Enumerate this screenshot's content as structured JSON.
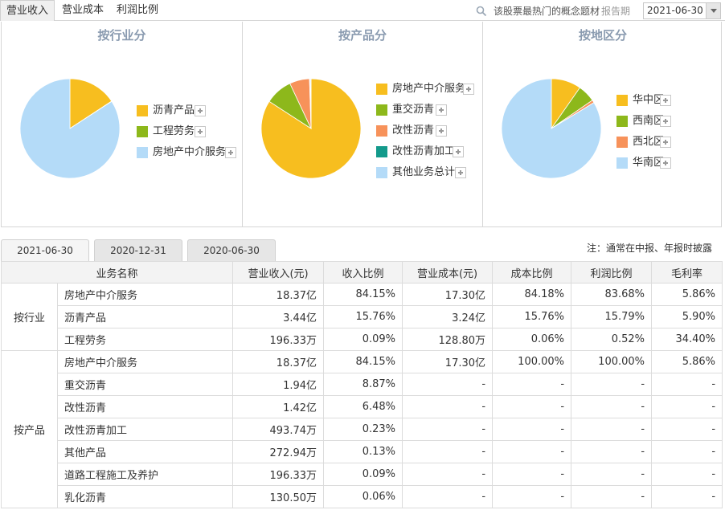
{
  "top_tabs": [
    "营业收入",
    "营业成本",
    "利润比例"
  ],
  "search": {
    "text": "该股票最热门的概念题材"
  },
  "report_label": "报告期",
  "report_date": "2021-06-30",
  "panels": [
    {
      "title": "按行业分",
      "legend": [
        "沥青产品",
        "工程劳务",
        "房地产中介服务"
      ]
    },
    {
      "title": "按产品分",
      "legend": [
        "房地产中介服务",
        "重交沥青",
        "改性沥青",
        "改性沥青加工",
        "其他业务总计"
      ]
    },
    {
      "title": "按地区分",
      "legend": [
        "华中区",
        "西南区",
        "西北区",
        "华南区"
      ]
    }
  ],
  "colors": {
    "yellow": "#F7BE1F",
    "green": "#8DB81B",
    "orange": "#F7925A",
    "teal": "#139A8B",
    "lightblue": "#B4DBF8"
  },
  "chart_data": [
    {
      "type": "pie",
      "labels": [
        "沥青产品",
        "工程劳务",
        "房地产中介服务"
      ],
      "values": [
        15.76,
        0.09,
        84.15
      ],
      "colors": [
        "#F7BE1F",
        "#8DB81B",
        "#B4DBF8"
      ]
    },
    {
      "type": "pie",
      "labels": [
        "房地产中介服务",
        "重交沥青",
        "改性沥青",
        "改性沥青加工",
        "其他业务总计"
      ],
      "values": [
        84.15,
        8.87,
        6.48,
        0.23,
        0.27
      ],
      "colors": [
        "#F7BE1F",
        "#8DB81B",
        "#F7925A",
        "#139A8B",
        "#B4DBF8"
      ]
    },
    {
      "type": "pie",
      "labels": [
        "华中区",
        "西南区",
        "西北区",
        "华南区"
      ],
      "values": [
        9.7,
        5.7,
        0.9,
        83.7
      ],
      "colors": [
        "#F7BE1F",
        "#8DB81B",
        "#F7925A",
        "#B4DBF8"
      ]
    }
  ],
  "period_tabs": [
    "2021-06-30",
    "2020-12-31",
    "2020-06-30"
  ],
  "note": "注：通常在中报、年报时披露",
  "table": {
    "headers": [
      "业务名称",
      "营业收入(元)",
      "收入比例",
      "营业成本(元)",
      "成本比例",
      "利润比例",
      "毛利率"
    ],
    "groups": [
      {
        "category": "按行业",
        "rows": [
          [
            "房地产中介服务",
            "18.37亿",
            "84.15%",
            "17.30亿",
            "84.18%",
            "83.68%",
            "5.86%"
          ],
          [
            "沥青产品",
            "3.44亿",
            "15.76%",
            "3.24亿",
            "15.76%",
            "15.79%",
            "5.90%"
          ],
          [
            "工程劳务",
            "196.33万",
            "0.09%",
            "128.80万",
            "0.06%",
            "0.52%",
            "34.40%"
          ]
        ]
      },
      {
        "category": "按产品",
        "rows": [
          [
            "房地产中介服务",
            "18.37亿",
            "84.15%",
            "17.30亿",
            "100.00%",
            "100.00%",
            "5.86%"
          ],
          [
            "重交沥青",
            "1.94亿",
            "8.87%",
            "-",
            "-",
            "-",
            "-"
          ],
          [
            "改性沥青",
            "1.42亿",
            "6.48%",
            "-",
            "-",
            "-",
            "-"
          ],
          [
            "改性沥青加工",
            "493.74万",
            "0.23%",
            "-",
            "-",
            "-",
            "-"
          ],
          [
            "其他产品",
            "272.94万",
            "0.13%",
            "-",
            "-",
            "-",
            "-"
          ],
          [
            "道路工程施工及养护",
            "196.33万",
            "0.09%",
            "-",
            "-",
            "-",
            "-"
          ],
          [
            "乳化沥青",
            "130.50万",
            "0.06%",
            "-",
            "-",
            "-",
            "-"
          ]
        ]
      }
    ]
  }
}
